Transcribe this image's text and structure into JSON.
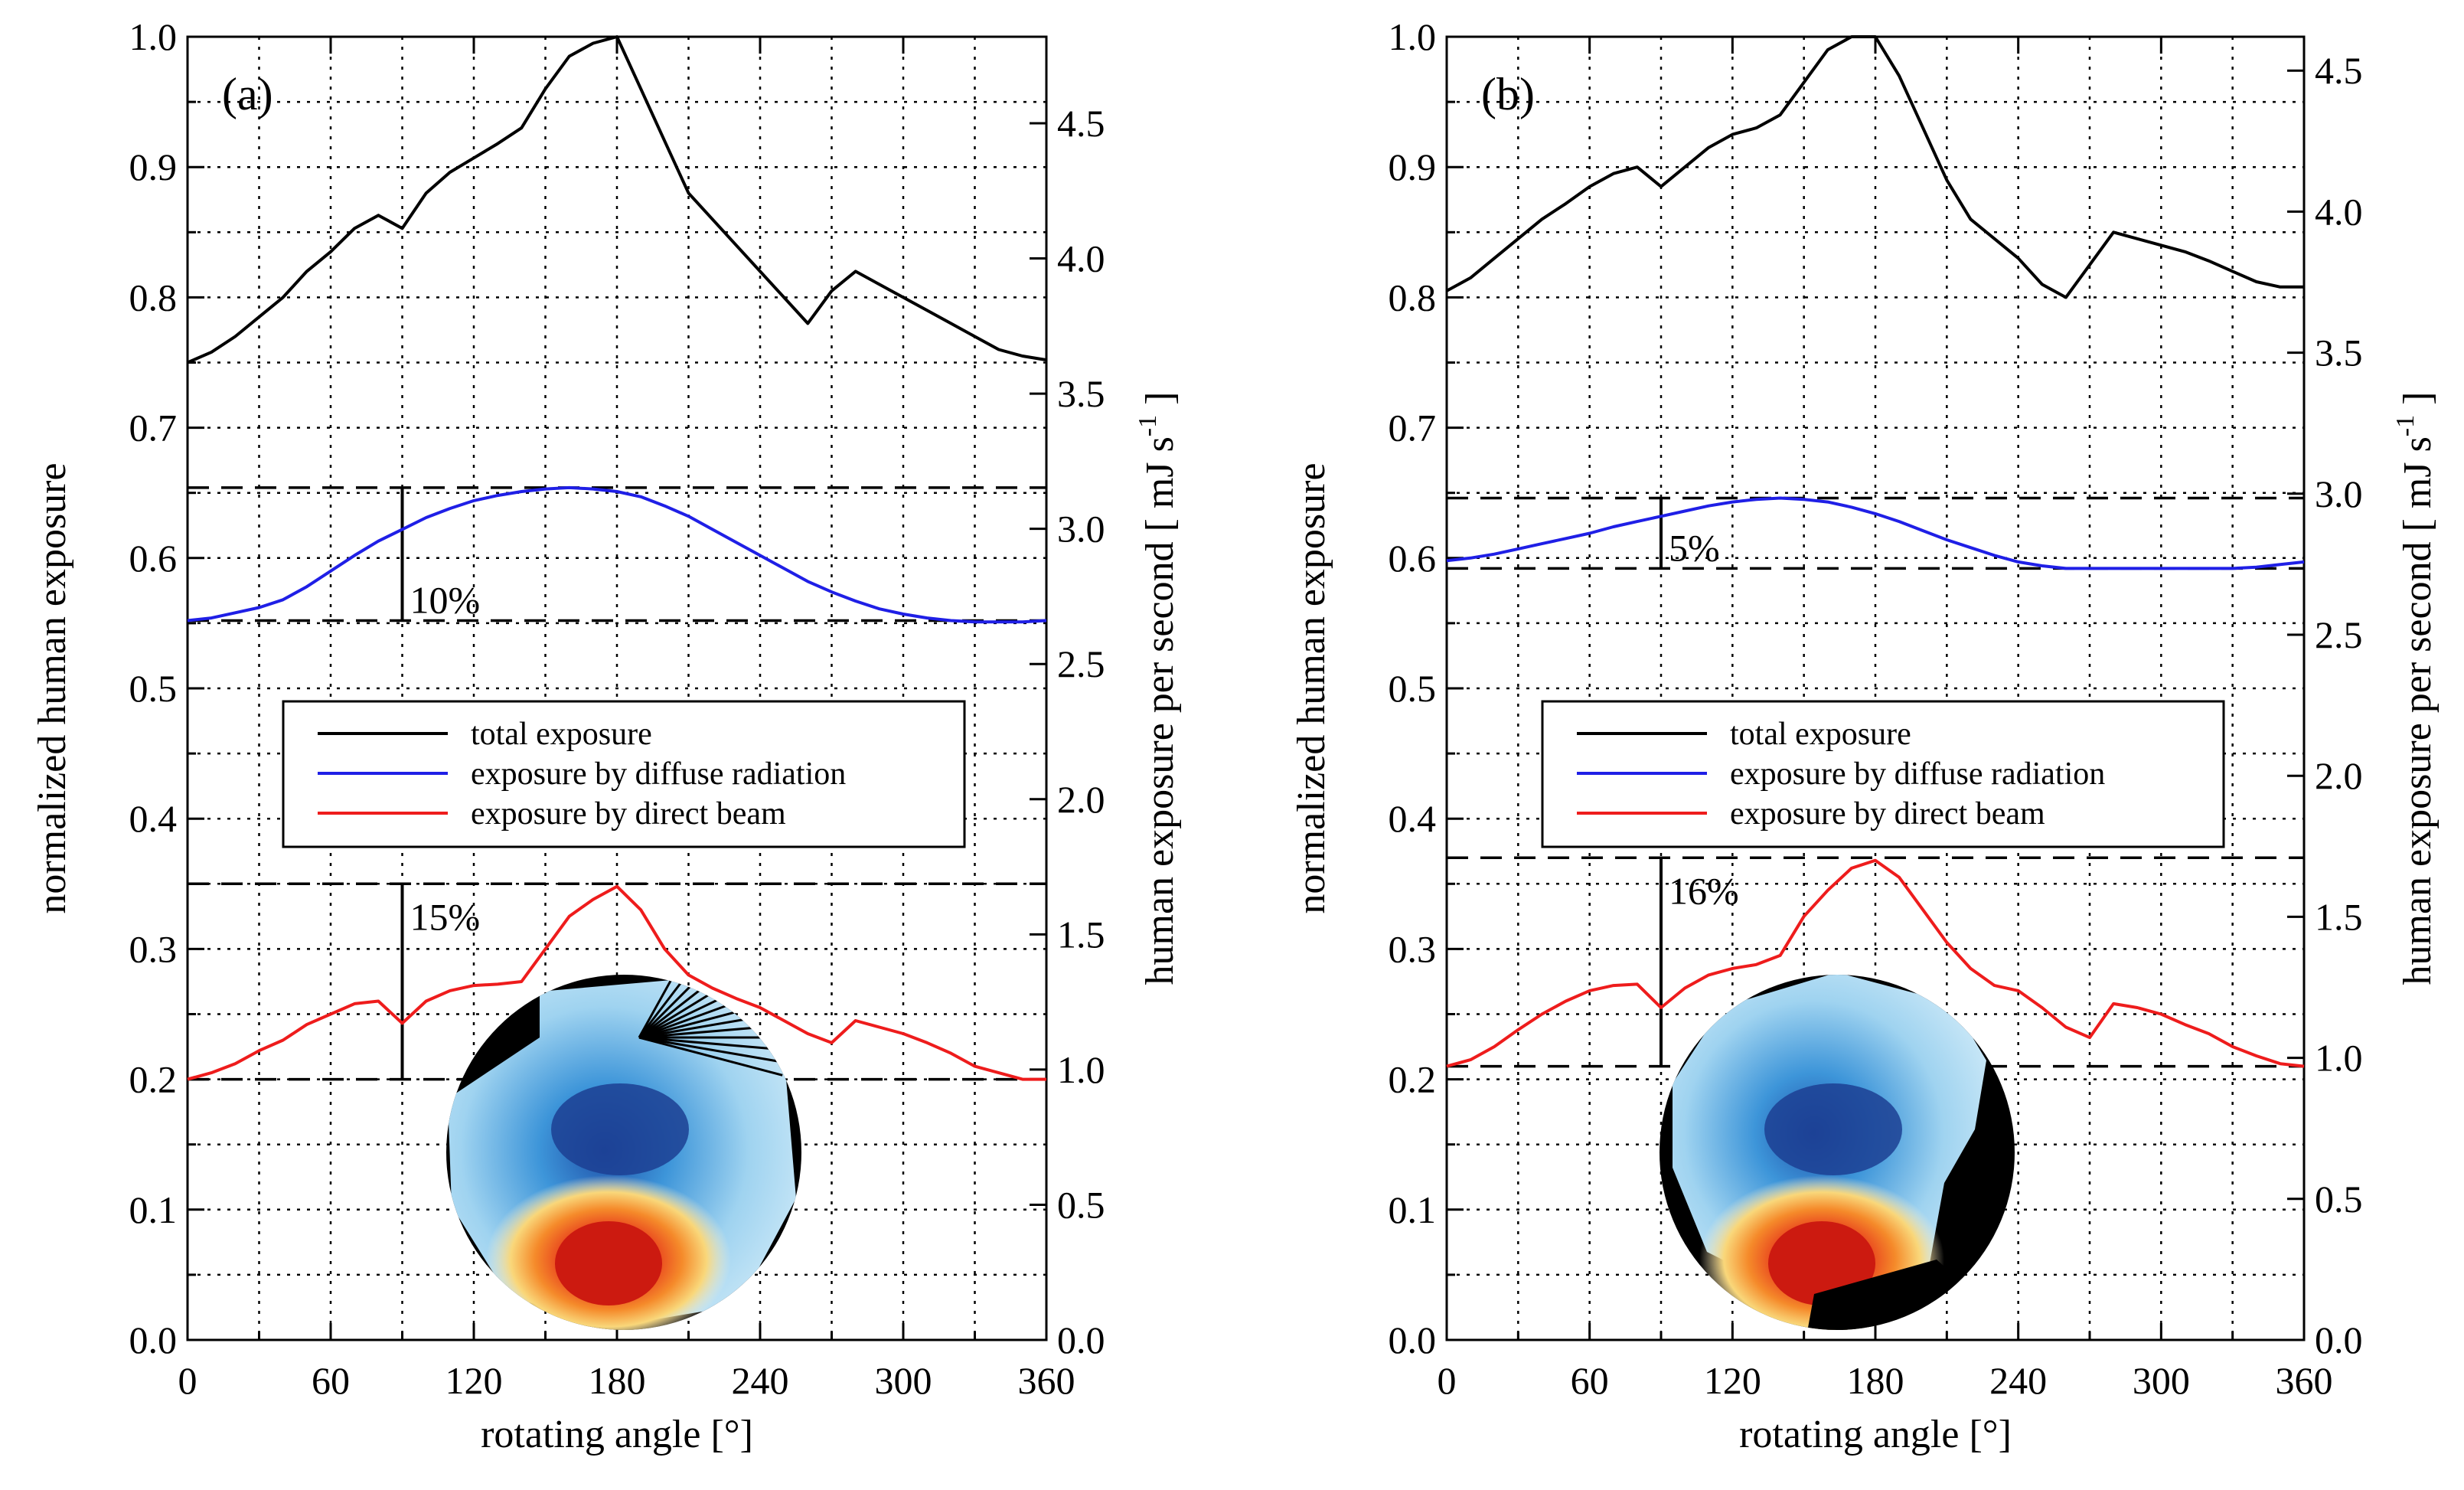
{
  "chart_data": [
    {
      "type": "line",
      "panel_label": "(a)",
      "xlabel": "rotating  angle  [°]",
      "ylabel_left": "normalized  human  exposure",
      "ylabel_right_main": "human exposure per second [ mJ s",
      "ylabel_right_sup": "-1",
      "ylabel_right_end": " ]",
      "xlim": [
        0,
        360
      ],
      "ylim": [
        0.0,
        1.0
      ],
      "right_ylim": [
        0.0,
        4.82
      ],
      "x_ticks": [
        "0",
        "60",
        "120",
        "180",
        "240",
        "300",
        "360"
      ],
      "y_ticks": [
        "0.0",
        "0.1",
        "0.2",
        "0.3",
        "0.4",
        "0.5",
        "0.6",
        "0.7",
        "0.8",
        "0.9",
        "1.0"
      ],
      "right_ticks": [
        {
          "value": 0.0,
          "label": "0.0"
        },
        {
          "value": 0.5,
          "label": "0.5"
        },
        {
          "value": 1.0,
          "label": "1.0"
        },
        {
          "value": 1.5,
          "label": "1.5"
        },
        {
          "value": 2.0,
          "label": "2.0"
        },
        {
          "value": 2.5,
          "label": "2.5"
        },
        {
          "value": 3.0,
          "label": "3.0"
        },
        {
          "value": 3.5,
          "label": "3.5"
        },
        {
          "value": 4.0,
          "label": "4.0"
        },
        {
          "value": 4.5,
          "label": "4.5"
        }
      ],
      "legend": [
        {
          "label": "total exposure",
          "color": "#000000"
        },
        {
          "label": "exposure by diffuse radiation",
          "color": "#1f1fe6"
        },
        {
          "label": "exposure by direct beam",
          "color": "#ee1c1c"
        }
      ],
      "series": [
        {
          "name": "total exposure",
          "color": "#000000",
          "x": [
            0,
            10,
            20,
            30,
            40,
            50,
            60,
            70,
            80,
            90,
            100,
            110,
            120,
            130,
            140,
            150,
            160,
            170,
            180,
            190,
            200,
            210,
            220,
            230,
            240,
            250,
            260,
            270,
            280,
            290,
            300,
            310,
            320,
            330,
            340,
            350,
            360
          ],
          "values": [
            0.75,
            0.758,
            0.77,
            0.785,
            0.8,
            0.82,
            0.835,
            0.853,
            0.863,
            0.853,
            0.88,
            0.896,
            0.907,
            0.918,
            0.93,
            0.96,
            0.985,
            0.995,
            1.0,
            0.96,
            0.92,
            0.88,
            0.86,
            0.84,
            0.82,
            0.8,
            0.78,
            0.805,
            0.82,
            0.81,
            0.8,
            0.79,
            0.78,
            0.77,
            0.76,
            0.755,
            0.752
          ]
        },
        {
          "name": "exposure by diffuse radiation",
          "color": "#1f1fe6",
          "x": [
            0,
            10,
            20,
            30,
            40,
            50,
            60,
            70,
            80,
            90,
            100,
            110,
            120,
            130,
            140,
            150,
            160,
            170,
            180,
            190,
            200,
            210,
            220,
            230,
            240,
            250,
            260,
            270,
            280,
            290,
            300,
            310,
            320,
            330,
            340,
            350,
            360
          ],
          "values": [
            0.552,
            0.554,
            0.558,
            0.562,
            0.568,
            0.578,
            0.59,
            0.602,
            0.613,
            0.622,
            0.631,
            0.638,
            0.644,
            0.648,
            0.651,
            0.653,
            0.654,
            0.653,
            0.651,
            0.647,
            0.64,
            0.632,
            0.622,
            0.612,
            0.602,
            0.592,
            0.582,
            0.574,
            0.567,
            0.561,
            0.557,
            0.554,
            0.552,
            0.551,
            0.551,
            0.551,
            0.552
          ]
        },
        {
          "name": "exposure by direct beam",
          "color": "#ee1c1c",
          "x": [
            0,
            10,
            20,
            30,
            40,
            50,
            60,
            70,
            80,
            90,
            100,
            110,
            120,
            130,
            140,
            150,
            160,
            170,
            180,
            190,
            200,
            210,
            220,
            230,
            240,
            250,
            260,
            270,
            280,
            290,
            300,
            310,
            320,
            330,
            340,
            350,
            360
          ],
          "values": [
            0.2,
            0.205,
            0.212,
            0.222,
            0.23,
            0.242,
            0.25,
            0.258,
            0.26,
            0.243,
            0.26,
            0.268,
            0.272,
            0.273,
            0.275,
            0.3,
            0.325,
            0.338,
            0.348,
            0.33,
            0.3,
            0.28,
            0.27,
            0.262,
            0.255,
            0.245,
            0.235,
            0.228,
            0.245,
            0.24,
            0.235,
            0.228,
            0.22,
            0.21,
            0.205,
            0.2,
            0.2
          ]
        }
      ],
      "ranges": [
        {
          "label": "10%",
          "low": 0.552,
          "high": 0.654
        },
        {
          "label": "15%",
          "low": 0.2,
          "high": 0.35
        }
      ],
      "inset": "fisheye-sky-image"
    },
    {
      "type": "line",
      "panel_label": "(b)",
      "xlabel": "rotating  angle  [°]",
      "ylabel_left": "normalized  human  exposure",
      "ylabel_right_main": "human exposure per second [ mJ s",
      "ylabel_right_sup": "-1",
      "ylabel_right_end": " ]",
      "xlim": [
        0,
        360
      ],
      "ylim": [
        0.0,
        1.0
      ],
      "right_ylim": [
        0.0,
        4.62
      ],
      "x_ticks": [
        "0",
        "60",
        "120",
        "180",
        "240",
        "300",
        "360"
      ],
      "y_ticks": [
        "0.0",
        "0.1",
        "0.2",
        "0.3",
        "0.4",
        "0.5",
        "0.6",
        "0.7",
        "0.8",
        "0.9",
        "1.0"
      ],
      "right_ticks": [
        {
          "value": 0.0,
          "label": "0.0"
        },
        {
          "value": 0.5,
          "label": "0.5"
        },
        {
          "value": 1.0,
          "label": "1.0"
        },
        {
          "value": 1.5,
          "label": "1.5"
        },
        {
          "value": 2.0,
          "label": "2.0"
        },
        {
          "value": 2.5,
          "label": "2.5"
        },
        {
          "value": 3.0,
          "label": "3.0"
        },
        {
          "value": 3.5,
          "label": "3.5"
        },
        {
          "value": 4.0,
          "label": "4.0"
        },
        {
          "value": 4.5,
          "label": "4.5"
        }
      ],
      "legend": [
        {
          "label": "total exposure",
          "color": "#000000"
        },
        {
          "label": "exposure by diffuse radiation",
          "color": "#1f1fe6"
        },
        {
          "label": "exposure by direct beam",
          "color": "#ee1c1c"
        }
      ],
      "series": [
        {
          "name": "total exposure",
          "color": "#000000",
          "x": [
            0,
            10,
            20,
            30,
            40,
            50,
            60,
            70,
            80,
            90,
            100,
            110,
            120,
            130,
            140,
            150,
            160,
            170,
            180,
            190,
            200,
            210,
            220,
            230,
            240,
            250,
            260,
            270,
            280,
            290,
            300,
            310,
            320,
            330,
            340,
            350,
            360
          ],
          "values": [
            0.805,
            0.815,
            0.83,
            0.845,
            0.86,
            0.872,
            0.885,
            0.895,
            0.9,
            0.885,
            0.9,
            0.915,
            0.925,
            0.93,
            0.94,
            0.965,
            0.99,
            1.0,
            1.0,
            0.97,
            0.93,
            0.89,
            0.86,
            0.845,
            0.83,
            0.81,
            0.8,
            0.825,
            0.85,
            0.845,
            0.84,
            0.835,
            0.828,
            0.82,
            0.812,
            0.808,
            0.808
          ]
        },
        {
          "name": "exposure by diffuse radiation",
          "color": "#1f1fe6",
          "x": [
            0,
            10,
            20,
            30,
            40,
            50,
            60,
            70,
            80,
            90,
            100,
            110,
            120,
            130,
            140,
            150,
            160,
            170,
            180,
            190,
            200,
            210,
            220,
            230,
            240,
            250,
            260,
            270,
            280,
            290,
            300,
            310,
            320,
            330,
            340,
            350,
            360
          ],
          "values": [
            0.598,
            0.6,
            0.603,
            0.607,
            0.611,
            0.615,
            0.619,
            0.624,
            0.628,
            0.632,
            0.636,
            0.64,
            0.643,
            0.645,
            0.646,
            0.645,
            0.643,
            0.639,
            0.634,
            0.628,
            0.621,
            0.614,
            0.608,
            0.602,
            0.597,
            0.594,
            0.592,
            0.592,
            0.592,
            0.592,
            0.592,
            0.592,
            0.592,
            0.592,
            0.593,
            0.595,
            0.597
          ]
        },
        {
          "name": "exposure by direct beam",
          "color": "#ee1c1c",
          "x": [
            0,
            10,
            20,
            30,
            40,
            50,
            60,
            70,
            80,
            90,
            100,
            110,
            120,
            130,
            140,
            150,
            160,
            170,
            180,
            190,
            200,
            210,
            220,
            230,
            240,
            250,
            260,
            270,
            280,
            290,
            300,
            310,
            320,
            330,
            340,
            350,
            360
          ],
          "values": [
            0.21,
            0.215,
            0.225,
            0.238,
            0.25,
            0.26,
            0.268,
            0.272,
            0.273,
            0.255,
            0.27,
            0.28,
            0.285,
            0.288,
            0.295,
            0.325,
            0.345,
            0.362,
            0.368,
            0.355,
            0.33,
            0.305,
            0.285,
            0.272,
            0.268,
            0.255,
            0.24,
            0.232,
            0.258,
            0.255,
            0.25,
            0.242,
            0.235,
            0.225,
            0.218,
            0.212,
            0.21
          ]
        }
      ],
      "ranges": [
        {
          "label": "5%",
          "low": 0.592,
          "high": 0.646
        },
        {
          "label": "16%",
          "low": 0.21,
          "high": 0.37
        }
      ],
      "inset": "fisheye-sky-image"
    }
  ]
}
